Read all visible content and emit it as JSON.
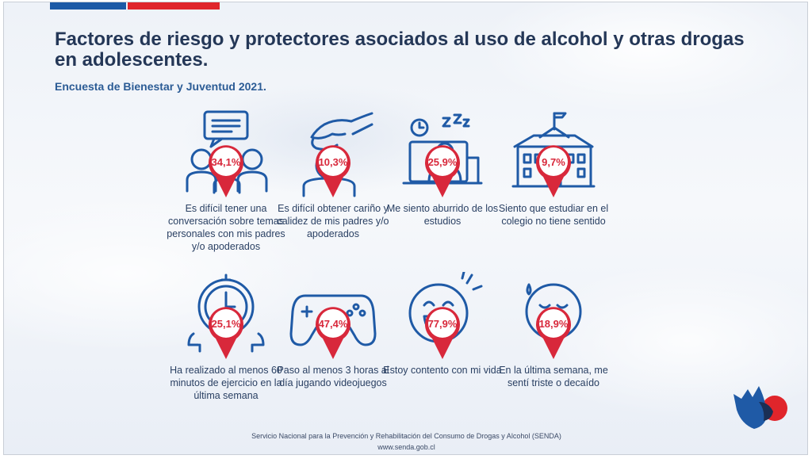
{
  "title": "Factores de riesgo y protectores asociados al uso de alcohol y otras drogas en adolescentes.",
  "subtitle": "Encuesta de Bienestar y Juventud 2021.",
  "items": [
    {
      "icon": "speech-bubble-family-icon",
      "value": "34,1%",
      "text": "Es difícil tener una conversación sobre temas personales con mis padres y/o apoderados"
    },
    {
      "icon": "caring-hand-icon",
      "value": "10,3%",
      "text": "Es difícil obtener cariño y calidez de mis padres y/o apoderados"
    },
    {
      "icon": "bored-student-icon",
      "value": "25,9%",
      "text": "Me siento aburrido de los estudios"
    },
    {
      "icon": "school-building-icon",
      "value": "9,7%",
      "text": "Siento que estudiar en el colegio no tiene sentido"
    },
    {
      "icon": "stopwatch-icon",
      "value": "25,1%",
      "text": "Ha realizado al menos 60 minutos de ejercicio en la última semana"
    },
    {
      "icon": "gamepad-icon",
      "value": "47,4%",
      "text": "Paso al menos 3 horas al día jugando videojuegos"
    },
    {
      "icon": "happy-face-icon",
      "value": "77,9%",
      "text": "Estoy contento con mi vida"
    },
    {
      "icon": "sad-face-icon",
      "value": "18,9%",
      "text": "En la última semana, me sentí triste o decaído"
    }
  ],
  "footer": {
    "line1": "Servicio Nacional para la Prevención y Rehabilitación del Consumo de Drogas y Alcohol (SENDA)",
    "line2": "www.senda.gob.cl"
  },
  "colors": {
    "navy": "#243757",
    "icon_blue": "#1f5aa6",
    "accent_red": "#e0252b",
    "pin_red": "#d8283b"
  }
}
